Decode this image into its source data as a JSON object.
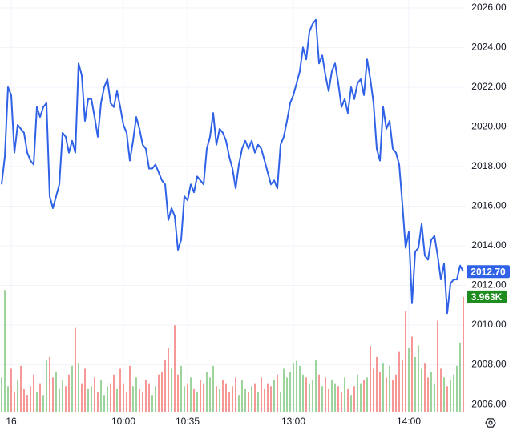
{
  "chart_data": {
    "type": "line",
    "xlim": [
      -0.5,
      144.5
    ],
    "xticks": [
      {
        "value": 3,
        "label": "16"
      },
      {
        "value": 38,
        "label": "10:00"
      },
      {
        "value": 58,
        "label": "10:35"
      },
      {
        "value": 91,
        "label": "13:00"
      },
      {
        "value": 127,
        "label": "14:00"
      }
    ],
    "ylim": [
      2005.6,
      2026.4
    ],
    "yticks": [
      {
        "value": 2006,
        "label": "2006.00"
      },
      {
        "value": 2008,
        "label": "2008.00"
      },
      {
        "value": 2010,
        "label": "2010.00"
      },
      {
        "value": 2012,
        "label": "2012.00"
      },
      {
        "value": 2014,
        "label": "2014.00"
      },
      {
        "value": 2016,
        "label": "2016.00"
      },
      {
        "value": 2018,
        "label": "2018.00"
      },
      {
        "value": 2020,
        "label": "2020.00"
      },
      {
        "value": 2022,
        "label": "2022.00"
      },
      {
        "value": 2024,
        "label": "2024.00"
      },
      {
        "value": 2026,
        "label": "2026.00"
      }
    ],
    "y2lim": [
      0,
      5500
    ],
    "grid": true,
    "series": [
      {
        "type": "line",
        "color": "#2f62e6",
        "last_value_label": "2012.70",
        "values": [
          2017.1,
          2018.5,
          2022.0,
          2021.6,
          2018.7,
          2020.1,
          2019.9,
          2019.7,
          2018.7,
          2018.3,
          2018.1,
          2021.0,
          2020.5,
          2021.0,
          2021.2,
          2016.5,
          2015.9,
          2016.5,
          2017.1,
          2019.7,
          2019.5,
          2018.7,
          2019.3,
          2018.7,
          2023.2,
          2022.6,
          2020.3,
          2021.4,
          2021.4,
          2020.5,
          2019.5,
          2021.2,
          2022.0,
          2022.4,
          2021.2,
          2021.0,
          2021.8,
          2021.0,
          2020.1,
          2019.7,
          2018.3,
          2019.3,
          2020.5,
          2019.9,
          2019.1,
          2018.9,
          2017.9,
          2017.9,
          2018.1,
          2017.7,
          2017.3,
          2017.1,
          2015.3,
          2015.9,
          2015.5,
          2013.8,
          2014.3,
          2016.5,
          2016.3,
          2017.1,
          2016.7,
          2017.5,
          2017.3,
          2017.1,
          2018.9,
          2019.5,
          2020.7,
          2019.1,
          2019.9,
          2019.7,
          2019.3,
          2018.5,
          2017.9,
          2016.9,
          2018.1,
          2018.9,
          2019.3,
          2018.9,
          2019.3,
          2018.7,
          2019.1,
          2018.9,
          2018.3,
          2017.7,
          2017.1,
          2017.3,
          2016.9,
          2019.1,
          2019.5,
          2020.3,
          2021.2,
          2021.6,
          2022.2,
          2022.8,
          2024.0,
          2023.4,
          2024.8,
          2025.2,
          2025.4,
          2023.2,
          2023.6,
          2022.6,
          2021.8,
          2022.8,
          2023.2,
          2022.2,
          2021.0,
          2021.4,
          2020.7,
          2022.0,
          2021.4,
          2022.2,
          2022.4,
          2021.6,
          2023.4,
          2022.4,
          2021.2,
          2018.9,
          2018.3,
          2021.0,
          2019.9,
          2020.3,
          2018.9,
          2018.7,
          2018.1,
          2016.1,
          2013.9,
          2014.7,
          2011.1,
          2013.7,
          2013.9,
          2015.1,
          2013.5,
          2013.3,
          2014.3,
          2014.5,
          2013.5,
          2012.3,
          2013.1,
          2010.6,
          2012.1,
          2012.3,
          2012.3,
          2013.0,
          2012.7
        ]
      },
      {
        "type": "bar",
        "axis": "y2",
        "up_color": "#5cb85c",
        "down_color": "#ef5350",
        "last_color": "#1e8c1e",
        "last_value_label": "3.963K",
        "values": [
          1200,
          4200,
          900,
          1500,
          700,
          1100,
          1600,
          800,
          600,
          900,
          1300,
          700,
          1000,
          600,
          1800,
          1900,
          1200,
          1400,
          800,
          1100,
          900,
          1300,
          1600,
          2900,
          1700,
          1000,
          1500,
          800,
          900,
          1200,
          700,
          1100,
          600,
          900,
          1000,
          1300,
          800,
          1500,
          1000,
          700,
          1600,
          900,
          1200,
          800,
          700,
          1100,
          1000,
          600,
          900,
          1300,
          1400,
          1800,
          2200,
          1500,
          2990,
          1300,
          1600,
          900,
          1000,
          1200,
          800,
          700,
          1100,
          1000,
          1400,
          1200,
          1600,
          900,
          800,
          1100,
          1000,
          700,
          900,
          1200,
          600,
          1100,
          800,
          700,
          900,
          1000,
          700,
          1200,
          800,
          1000,
          900,
          1100,
          1300,
          700,
          1500,
          1200,
          1400,
          1700,
          1770,
          1600,
          1300,
          1200,
          1000,
          1100,
          1800,
          1300,
          900,
          1200,
          800,
          1100,
          1000,
          900,
          700,
          1200,
          800,
          600,
          900,
          1300,
          1000,
          1100,
          1200,
          2280,
          1500,
          1900,
          1400,
          1700,
          1200,
          1600,
          1100,
          1300,
          2100,
          1800,
          3470,
          2200,
          2600,
          1900,
          2300,
          1500,
          1700,
          1200,
          1400,
          1000,
          3150,
          1500,
          1200,
          900,
          1100,
          1300,
          1600,
          2400,
          3963
        ]
      }
    ]
  }
}
